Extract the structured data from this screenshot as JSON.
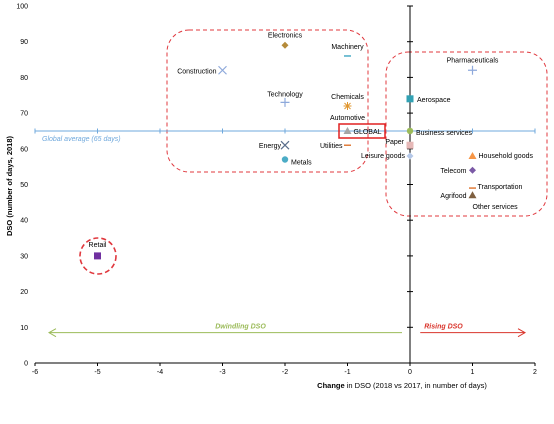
{
  "chart_data": {
    "type": "scatter",
    "xlabel_bold": "Change",
    "xlabel_rest": " in DSO (2018 vs 2017, in number of days)",
    "ylabel": "DSO (number of days, 2018)",
    "xlim": [
      -6,
      2
    ],
    "ylim": [
      0,
      100
    ],
    "x_ticks": [
      -6,
      -5,
      -4,
      -3,
      -2,
      -1,
      0,
      1,
      2
    ],
    "y_ticks": [
      0,
      10,
      20,
      30,
      40,
      50,
      60,
      70,
      80,
      90,
      100
    ],
    "grid": false,
    "global_average": {
      "value": 65,
      "label": "Global average (65 days)",
      "color": "#6fa8dc"
    },
    "arrows": [
      {
        "label": "Dwindling DSO",
        "from": 0,
        "to": -6,
        "y": 8.5,
        "color": "#9bbb59"
      },
      {
        "label": "Rising DSO",
        "from": 0.1,
        "to": 2,
        "y": 8.5,
        "color": "#d9342b"
      }
    ],
    "points": [
      {
        "label": "Electronics",
        "x": -2,
        "y": 89,
        "marker": "diamond",
        "color": "#b58b3a"
      },
      {
        "label": "Machinery",
        "x": -1,
        "y": 86,
        "marker": "dash",
        "color": "#4bacc6"
      },
      {
        "label": "Construction",
        "x": -3,
        "y": 82,
        "marker": "x",
        "color": "#8ea9db"
      },
      {
        "label": "Technology",
        "x": -2,
        "y": 73,
        "marker": "plus",
        "color": "#8ea9db"
      },
      {
        "label": "Chemicals",
        "x": -1,
        "y": 72,
        "marker": "star",
        "color": "#e0962e"
      },
      {
        "label": "Automotive",
        "x": -1,
        "y": 72,
        "marker": "none",
        "color": "#e0962e"
      },
      {
        "label": "GLOBAL",
        "x": -1,
        "y": 65,
        "marker": "triangle",
        "color": "#a6a6a6"
      },
      {
        "label": "Energy",
        "x": -2,
        "y": 61,
        "marker": "x",
        "color": "#5a6e8c"
      },
      {
        "label": "Utilities",
        "x": -1,
        "y": 61,
        "marker": "dash",
        "color": "#e07b39"
      },
      {
        "label": "Metals",
        "x": -2,
        "y": 57,
        "marker": "circle",
        "color": "#4bacc6"
      },
      {
        "label": "Paper",
        "x": 0,
        "y": 61,
        "marker": "square",
        "color": "#e6b8b7"
      },
      {
        "label": "Leisure goods",
        "x": 0,
        "y": 58,
        "marker": "diamond",
        "color": "#b4c7e7"
      },
      {
        "label": "Pharmaceuticals",
        "x": 1,
        "y": 82,
        "marker": "plus",
        "color": "#8ea9db"
      },
      {
        "label": "Aerospace",
        "x": 0,
        "y": 74,
        "marker": "square",
        "color": "#31a1b3"
      },
      {
        "label": "Business services",
        "x": 0,
        "y": 65,
        "marker": "circle",
        "color": "#9bbb59"
      },
      {
        "label": "Household goods",
        "x": 1,
        "y": 58,
        "marker": "triangle",
        "color": "#f79646"
      },
      {
        "label": "Telecom",
        "x": 1,
        "y": 54,
        "marker": "diamond",
        "color": "#7b5aa6"
      },
      {
        "label": "Transportation",
        "x": 1,
        "y": 49,
        "marker": "dash",
        "color": "#e07b39"
      },
      {
        "label": "Agrifood",
        "x": 1,
        "y": 47,
        "marker": "triangle",
        "color": "#7f6040"
      },
      {
        "label": "Other services",
        "x": 1,
        "y": 47,
        "marker": "none",
        "color": "#000000"
      },
      {
        "label": "Retail",
        "x": -5,
        "y": 30,
        "marker": "square",
        "color": "#7030a0"
      }
    ]
  }
}
